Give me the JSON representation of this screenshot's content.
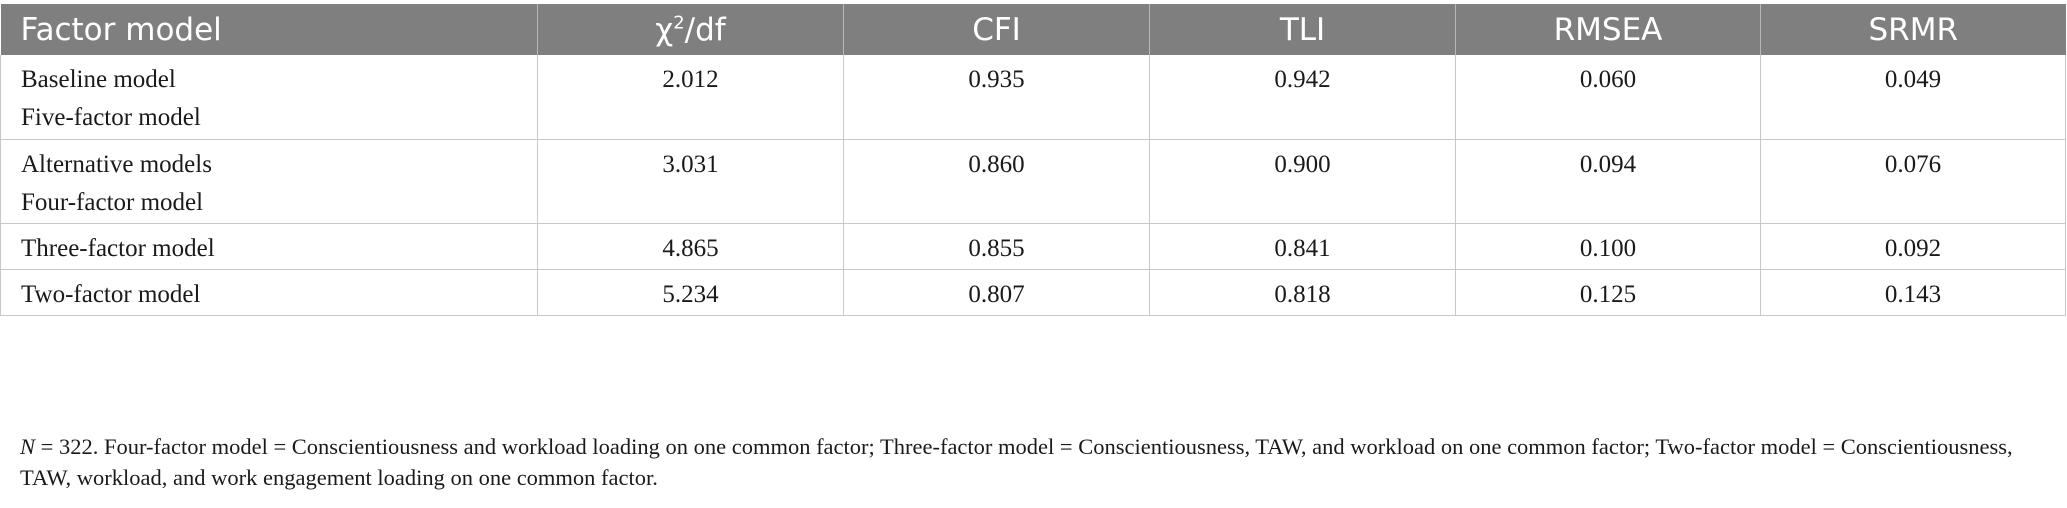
{
  "table": {
    "headers": {
      "factor_model": "Factor model",
      "chi_symbol": "χ",
      "chi_sup": "2",
      "chi_suffix": "/df",
      "cfi": "CFI",
      "tli": "TLI",
      "rmsea": "RMSEA",
      "srmr": "SRMR"
    },
    "rows": [
      {
        "label_1": "Baseline model",
        "label_2": "Five-factor model",
        "chi_df": "2.012",
        "cfi": "0.935",
        "tli": "0.942",
        "rmsea": "0.060",
        "srmr": "0.049"
      },
      {
        "label_1": "Alternative models",
        "label_2": "Four-factor model",
        "chi_df": "3.031",
        "cfi": "0.860",
        "tli": "0.900",
        "rmsea": "0.094",
        "srmr": "0.076"
      },
      {
        "label_1": "Three-factor model",
        "chi_df": "4.865",
        "cfi": "0.855",
        "tli": "0.841",
        "rmsea": "0.100",
        "srmr": "0.092"
      },
      {
        "label_1": "Two-factor model",
        "chi_df": "5.234",
        "cfi": "0.807",
        "tli": "0.818",
        "rmsea": "0.125",
        "srmr": "0.143"
      }
    ]
  },
  "footnote": {
    "n_letter": "N",
    "text": " = 322. Four-factor model = Conscientiousness and workload loading on one common factor; Three-factor model = Conscientiousness, TAW, and workload on one common factor; Two-factor model = Conscientiousness, TAW, workload, and work engagement loading on one common factor."
  },
  "colors": {
    "header_bg": "#7f7f7f",
    "header_text": "#ffffff",
    "border": "#c8c8c8",
    "body_text": "#1a1a1a"
  }
}
